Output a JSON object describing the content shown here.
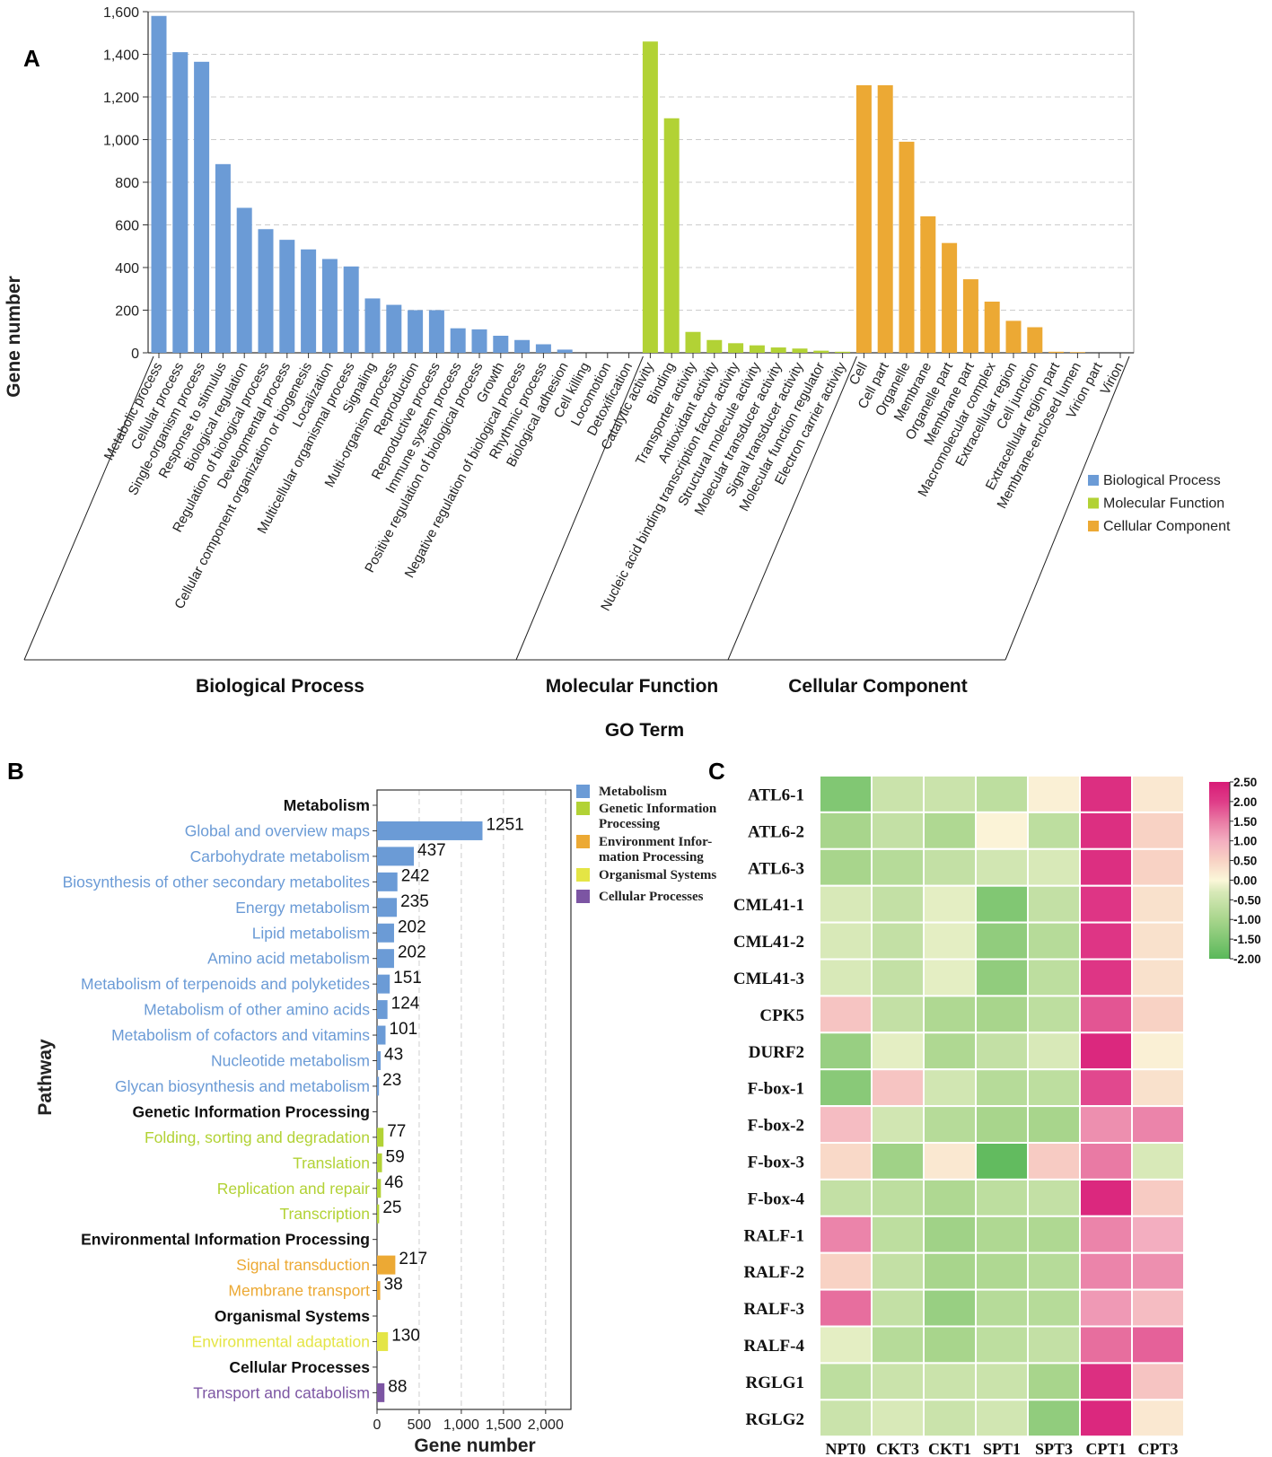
{
  "colors": {
    "bp": "#6b9bd6",
    "mf": "#b2d235",
    "cc": "#eca934",
    "metabolism": "#6b9bd6",
    "genetic": "#b2d235",
    "environmental": "#eca934",
    "organismal": "#e4e545",
    "cellular": "#7c55a3",
    "grid": "#cccccc",
    "axis": "#333333"
  },
  "chart_data": [
    {
      "panel": "A",
      "type": "bar",
      "panel_label": "A",
      "ylabel": "Gene number",
      "xlabel": "GO Term",
      "ylim": [
        0,
        1600
      ],
      "yticks": [
        0,
        200,
        400,
        600,
        800,
        1000,
        1200,
        1400,
        1600
      ],
      "ytick_labels": [
        "0",
        "200",
        "400",
        "600",
        "800",
        "1,000",
        "1,200",
        "1,400",
        "1,600"
      ],
      "grid": true,
      "legend": {
        "position": "right",
        "entries": [
          {
            "label": "Biological Process",
            "color_key": "bp"
          },
          {
            "label": "Molecular Function",
            "color_key": "mf"
          },
          {
            "label": "Cellular Component",
            "color_key": "cc"
          }
        ]
      },
      "groups": [
        {
          "name": "Biological Process",
          "color_key": "bp",
          "categories": [
            "Metabolic process",
            "Cellular process",
            "Single-organism process",
            "Response to stimulus",
            "Biological regulation",
            "Regulation of biological process",
            "Developmental process",
            "Cellular component organization or biogenesis",
            "Localization",
            "Multicellular organismal process",
            "Signaling",
            "Multi-organism process",
            "Reproduction",
            "Reproductive process",
            "Immune system process",
            "Positive regulation of biological process",
            "Growth",
            "Negative regulation of biological process",
            "Rhythmic process",
            "Biological adhesion",
            "Cell killing",
            "Locomotion",
            "Detoxification"
          ],
          "values": [
            1580,
            1410,
            1365,
            885,
            680,
            580,
            530,
            485,
            440,
            405,
            255,
            225,
            200,
            200,
            115,
            110,
            80,
            60,
            40,
            15,
            0,
            0,
            0
          ]
        },
        {
          "name": "Molecular Function",
          "color_key": "mf",
          "categories": [
            "Catalytic activity",
            "Binding",
            "Transporter activity",
            "Antioxidant activity",
            "Nucleic acid binding transcription factor activity",
            "Structural molecule activity",
            "Molecular transducer activity",
            "Signal transducer activity",
            "Molecular function regulator",
            "Electron carrier activity"
          ],
          "values": [
            1460,
            1100,
            98,
            60,
            45,
            35,
            25,
            20,
            10,
            5
          ]
        },
        {
          "name": "Cellular Component",
          "color_key": "cc",
          "categories": [
            "Cell",
            "Cell part",
            "Organelle",
            "Membrane",
            "Organelle part",
            "Membrane part",
            "Macromolecular complex",
            "Extracellular region",
            "Cell junction",
            "Extracellular region part",
            "Membrane-enclosed lumen",
            "Virion part",
            "Virion"
          ],
          "values": [
            1255,
            1255,
            990,
            640,
            515,
            345,
            240,
            150,
            120,
            5,
            3,
            0,
            0
          ]
        }
      ]
    },
    {
      "panel": "B",
      "type": "bar",
      "orientation": "horizontal",
      "panel_label": "B",
      "ylabel": "Pathway",
      "xlabel": "Gene number",
      "xlim": [
        0,
        2300
      ],
      "xticks": [
        0,
        500,
        1000,
        1500,
        2000
      ],
      "xtick_labels": [
        "0",
        "500",
        "1,000",
        "1,500",
        "2,000"
      ],
      "grid": true,
      "legend": {
        "position": "top-right",
        "entries": [
          {
            "label": "Metabolism",
            "color_key": "metabolism"
          },
          {
            "label": "Genetic Information Processing",
            "color_key": "genetic"
          },
          {
            "label": "Environment Information Processing",
            "color_key": "environmental"
          },
          {
            "label": "Organismal Systems",
            "color_key": "organismal"
          },
          {
            "label": "Cellular Processes",
            "color_key": "cellular"
          }
        ]
      },
      "rows": [
        {
          "label": "Metabolism",
          "header": true
        },
        {
          "label": "Global and overview maps",
          "value": 1251,
          "color_key": "metabolism"
        },
        {
          "label": "Carbohydrate metabolism",
          "value": 437,
          "color_key": "metabolism"
        },
        {
          "label": "Biosynthesis of other secondary metabolites",
          "value": 242,
          "color_key": "metabolism"
        },
        {
          "label": "Energy metabolism",
          "value": 235,
          "color_key": "metabolism"
        },
        {
          "label": "Lipid metabolism",
          "value": 202,
          "color_key": "metabolism"
        },
        {
          "label": "Amino acid metabolism",
          "value": 202,
          "color_key": "metabolism"
        },
        {
          "label": "Metabolism of terpenoids and polyketides",
          "value": 151,
          "color_key": "metabolism"
        },
        {
          "label": "Metabolism of other amino acids",
          "value": 124,
          "color_key": "metabolism"
        },
        {
          "label": "Metabolism of cofactors and vitamins",
          "value": 101,
          "color_key": "metabolism"
        },
        {
          "label": "Nucleotide metabolism",
          "value": 43,
          "color_key": "metabolism"
        },
        {
          "label": "Glycan biosynthesis and metabolism",
          "value": 23,
          "color_key": "metabolism"
        },
        {
          "label": "Genetic Information Processing",
          "header": true
        },
        {
          "label": "Folding, sorting and degradation",
          "value": 77,
          "color_key": "genetic"
        },
        {
          "label": "Translation",
          "value": 59,
          "color_key": "genetic"
        },
        {
          "label": "Replication and repair",
          "value": 46,
          "color_key": "genetic"
        },
        {
          "label": "Transcription",
          "value": 25,
          "color_key": "genetic"
        },
        {
          "label": "Environmental Information Processing",
          "header": true
        },
        {
          "label": "Signal transduction",
          "value": 217,
          "color_key": "environmental"
        },
        {
          "label": "Membrane transport",
          "value": 38,
          "color_key": "environmental"
        },
        {
          "label": "Organismal Systems",
          "header": true
        },
        {
          "label": "Environmental adaptation",
          "value": 130,
          "color_key": "organismal"
        },
        {
          "label": "Cellular Processes",
          "header": true
        },
        {
          "label": "Transport and catabolism",
          "value": 88,
          "color_key": "cellular"
        }
      ]
    },
    {
      "panel": "C",
      "type": "heatmap",
      "panel_label": "C",
      "columns": [
        "NPT0",
        "CKT3",
        "CKT1",
        "SPT1",
        "SPT3",
        "CPT1",
        "CPT3"
      ],
      "rows": [
        "ATL6-1",
        "ATL6-2",
        "ATL6-3",
        "CML41-1",
        "CML41-2",
        "CML41-3",
        "CPK5",
        "DURF2",
        "F-box-1",
        "F-box-2",
        "F-box-3",
        "F-box-4",
        "RALF-1",
        "RALF-2",
        "RALF-3",
        "RALF-4",
        "RGLG1",
        "RGLG2"
      ],
      "values": [
        [
          -1.5,
          -0.5,
          -0.5,
          -0.7,
          0.1,
          2.2,
          0.2
        ],
        [
          -1.0,
          -0.6,
          -0.9,
          0.05,
          -0.7,
          2.2,
          0.5
        ],
        [
          -1.0,
          -0.8,
          -0.6,
          -0.4,
          -0.3,
          2.2,
          0.5
        ],
        [
          -0.3,
          -0.6,
          -0.2,
          -1.5,
          -0.6,
          2.1,
          0.3
        ],
        [
          -0.3,
          -0.6,
          -0.2,
          -1.3,
          -0.8,
          2.1,
          0.3
        ],
        [
          -0.3,
          -0.6,
          -0.2,
          -1.3,
          -0.7,
          2.1,
          0.3
        ],
        [
          0.7,
          -0.6,
          -0.9,
          -1.0,
          -0.7,
          1.8,
          0.5
        ],
        [
          -1.2,
          -0.2,
          -0.9,
          -0.6,
          -0.3,
          2.3,
          0.1
        ],
        [
          -1.4,
          0.7,
          -0.4,
          -0.8,
          -0.7,
          1.9,
          0.3
        ],
        [
          0.8,
          -0.4,
          -0.8,
          -1.0,
          -1.0,
          1.3,
          1.4
        ],
        [
          0.4,
          -1.1,
          0.2,
          -1.9,
          0.6,
          1.5,
          -0.3
        ],
        [
          -0.6,
          -0.7,
          -0.9,
          -0.7,
          -0.6,
          2.3,
          0.6
        ],
        [
          1.4,
          -0.7,
          -1.1,
          -0.9,
          -0.9,
          1.4,
          1.0
        ],
        [
          0.5,
          -0.6,
          -1.0,
          -0.9,
          -0.8,
          1.4,
          1.3
        ],
        [
          1.6,
          -0.6,
          -1.2,
          -0.8,
          -0.8,
          1.2,
          0.8
        ],
        [
          -0.2,
          -0.8,
          -1.0,
          -0.7,
          -0.6,
          1.6,
          1.7
        ],
        [
          -0.7,
          -0.5,
          -0.5,
          -0.5,
          -1.0,
          2.2,
          0.7
        ],
        [
          -0.5,
          -0.3,
          -0.5,
          -0.4,
          -1.3,
          2.3,
          0.2
        ]
      ],
      "scale": {
        "min": -2.0,
        "max": 2.5,
        "ticks": [
          "2.50",
          "2.00",
          "1.50",
          "1.00",
          "0.50",
          "0.00",
          "-0.50",
          "-1.00",
          "-1.50",
          "-2.00"
        ],
        "tick_values": [
          2.5,
          2.0,
          1.5,
          1.0,
          0.5,
          0.0,
          -0.5,
          -1.0,
          -1.5,
          -2.0
        ],
        "stops": [
          {
            "v": -2.0,
            "c": "#5ab85a"
          },
          {
            "v": -1.0,
            "c": "#a8d58c"
          },
          {
            "v": -0.3,
            "c": "#d8e9b8"
          },
          {
            "v": 0.0,
            "c": "#fbf7d9"
          },
          {
            "v": 0.5,
            "c": "#f8d2c4"
          },
          {
            "v": 1.0,
            "c": "#f3aec0"
          },
          {
            "v": 1.5,
            "c": "#e97aa4"
          },
          {
            "v": 2.0,
            "c": "#df3c88"
          },
          {
            "v": 2.5,
            "c": "#d81b77"
          }
        ]
      }
    }
  ]
}
